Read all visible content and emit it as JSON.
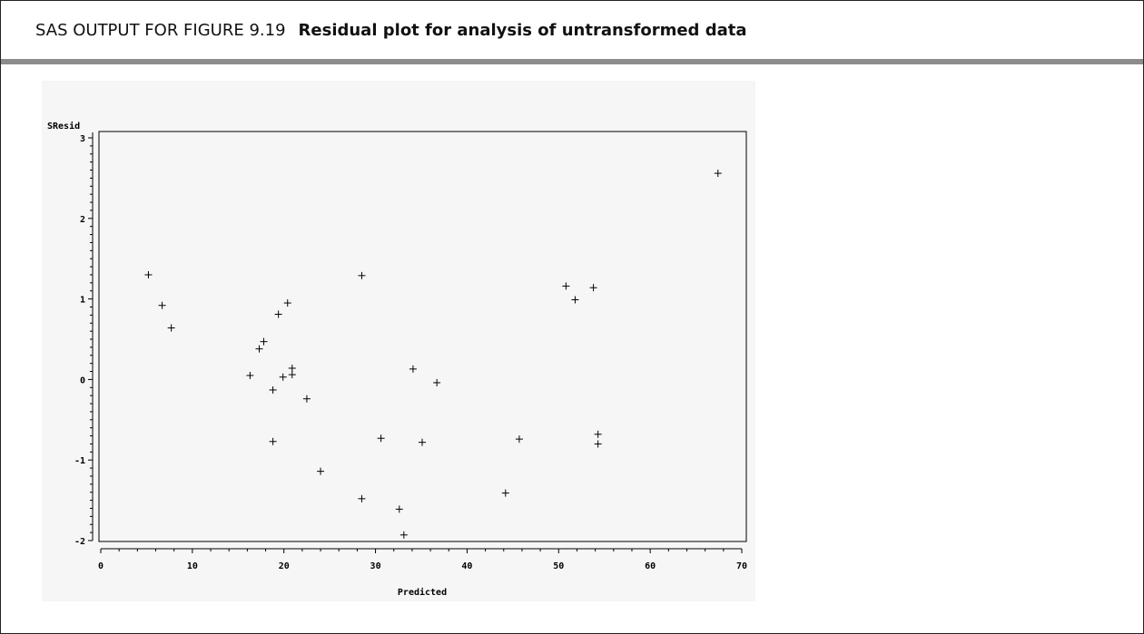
{
  "header": {
    "lead": "SAS OUTPUT FOR FIGURE 9.19",
    "title": "Residual plot for analysis of untransformed data"
  },
  "chart_data": {
    "type": "scatter",
    "marker": "+",
    "ylabel": "SResid",
    "xlabel": "Predicted",
    "xlim": [
      0,
      70
    ],
    "ylim": [
      -2,
      3
    ],
    "xticks": [
      0,
      10,
      20,
      30,
      40,
      50,
      60,
      70
    ],
    "yticks": [
      -2,
      -1,
      0,
      1,
      2,
      3
    ],
    "grid": false,
    "points": [
      {
        "x": 5.2,
        "y": 1.3
      },
      {
        "x": 6.7,
        "y": 0.92
      },
      {
        "x": 7.7,
        "y": 0.64
      },
      {
        "x": 16.3,
        "y": 0.05
      },
      {
        "x": 17.3,
        "y": 0.38
      },
      {
        "x": 17.8,
        "y": 0.47
      },
      {
        "x": 18.8,
        "y": -0.13
      },
      {
        "x": 18.8,
        "y": -0.77
      },
      {
        "x": 19.4,
        "y": 0.81
      },
      {
        "x": 19.9,
        "y": 0.03
      },
      {
        "x": 20.4,
        "y": 0.95
      },
      {
        "x": 20.9,
        "y": 0.14
      },
      {
        "x": 20.9,
        "y": 0.06
      },
      {
        "x": 22.5,
        "y": -0.24
      },
      {
        "x": 24.0,
        "y": -1.14
      },
      {
        "x": 28.5,
        "y": 1.29
      },
      {
        "x": 28.5,
        "y": -1.48
      },
      {
        "x": 30.6,
        "y": -0.73
      },
      {
        "x": 32.6,
        "y": -1.61
      },
      {
        "x": 33.1,
        "y": -1.93
      },
      {
        "x": 34.1,
        "y": 0.13
      },
      {
        "x": 35.1,
        "y": -0.78
      },
      {
        "x": 36.7,
        "y": -0.04
      },
      {
        "x": 44.2,
        "y": -1.41
      },
      {
        "x": 45.7,
        "y": -0.74
      },
      {
        "x": 50.8,
        "y": 1.16
      },
      {
        "x": 51.8,
        "y": 0.99
      },
      {
        "x": 53.8,
        "y": 1.14
      },
      {
        "x": 54.3,
        "y": -0.68
      },
      {
        "x": 54.3,
        "y": -0.8
      },
      {
        "x": 67.4,
        "y": 2.56
      }
    ]
  }
}
